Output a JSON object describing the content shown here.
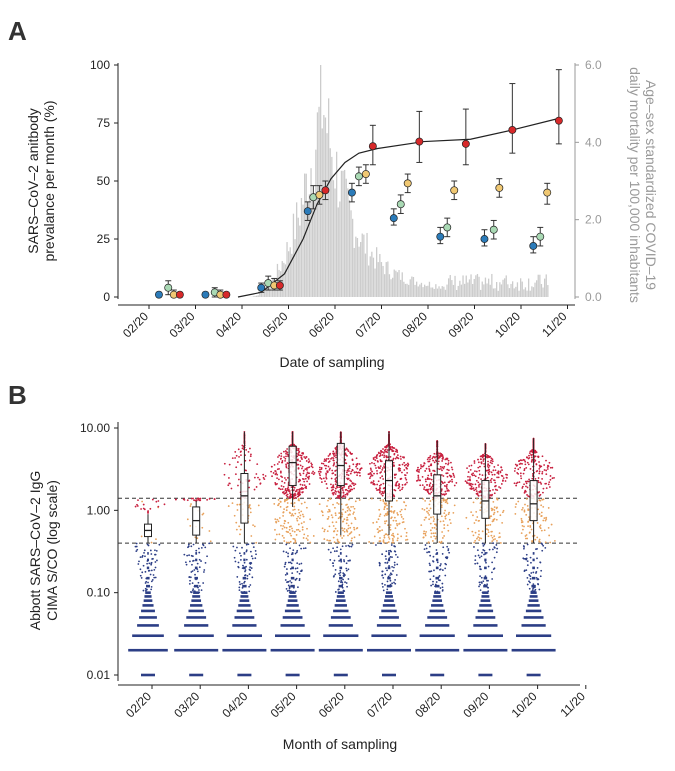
{
  "panels": {
    "A": {
      "letter": "A",
      "ylabel_line1": "SARS–CoV–2 anitbody",
      "ylabel_line2": "prevalance per month (%)",
      "y2label_line1": "Age–sex standardized COVID–19",
      "y2label_line2": "daily mortality per 100,000 inhabitants",
      "xlabel": "Date of sampling"
    },
    "B": {
      "letter": "B",
      "ylabel_line1": "Abbott SARS–CoV–2 IgG",
      "ylabel_line2": "CIMA S/CO (log scale)",
      "xlabel": "Month of sampling"
    }
  },
  "chart_data": [
    {
      "panel": "A",
      "type": "scatter",
      "title": "",
      "xlabel": "Date of sampling",
      "ylabel": "SARS–CoV–2 anitbody prevalance per month (%)",
      "y2label": "Age–sex standardized COVID–19 daily mortality per 100,000 inhabitants",
      "x_ticks": [
        "02/20",
        "03/20",
        "04/20",
        "05/20",
        "06/20",
        "07/20",
        "08/20",
        "09/20",
        "10/20",
        "11/20"
      ],
      "y_ticks": [
        "0",
        "25",
        "50",
        "75",
        "100"
      ],
      "y2_ticks": [
        "0.0",
        "2.0",
        "4.0",
        "6.0"
      ],
      "ylim": [
        0,
        100
      ],
      "y2lim": [
        0,
        6
      ],
      "colors": {
        "blue": "#2b7bb9",
        "green": "#a9d9b4",
        "yellow": "#f0c873",
        "red": "#d7292a",
        "mortality_bars": "#cccccc",
        "curve": "#222222"
      },
      "series": [
        {
          "name": "blue",
          "points": [
            [
              0.3,
              1,
              0,
              2
            ],
            [
              1.3,
              1,
              0,
              2
            ],
            [
              2.5,
              4,
              2,
              6
            ],
            [
              3.5,
              37,
              33,
              41
            ],
            [
              4.45,
              45,
              41,
              49
            ],
            [
              5.35,
              34,
              31,
              38
            ],
            [
              6.35,
              26,
              23,
              30
            ],
            [
              7.3,
              25,
              22,
              29
            ],
            [
              8.35,
              22,
              19,
              26
            ]
          ]
        },
        {
          "name": "green",
          "points": [
            [
              0.5,
              4,
              1,
              7
            ],
            [
              1.5,
              2,
              0,
              4
            ],
            [
              2.65,
              6,
              3,
              9
            ],
            [
              3.62,
              43,
              38,
              48
            ],
            [
              4.6,
              52,
              48,
              56
            ],
            [
              5.5,
              40,
              36,
              44
            ],
            [
              6.5,
              30,
              26,
              34
            ],
            [
              7.5,
              29,
              25,
              33
            ],
            [
              8.5,
              26,
              22,
              30
            ]
          ]
        },
        {
          "name": "yellow",
          "points": [
            [
              0.62,
              1,
              0,
              3
            ],
            [
              1.62,
              1,
              0,
              3
            ],
            [
              2.78,
              5,
              3,
              8
            ],
            [
              3.75,
              44,
              40,
              48
            ],
            [
              4.75,
              53,
              49,
              57
            ],
            [
              5.65,
              49,
              45,
              53
            ],
            [
              6.65,
              46,
              42,
              50
            ],
            [
              7.62,
              47,
              43,
              51
            ],
            [
              8.65,
              45,
              40,
              49
            ]
          ]
        },
        {
          "name": "red",
          "points": [
            [
              0.75,
              1,
              0,
              2
            ],
            [
              1.75,
              1,
              0,
              2
            ],
            [
              2.9,
              5,
              3,
              7
            ],
            [
              3.88,
              46,
              42,
              50
            ],
            [
              4.9,
              65,
              57,
              74
            ],
            [
              5.9,
              67,
              58,
              80
            ],
            [
              6.9,
              66,
              57,
              81
            ],
            [
              7.9,
              72,
              62,
              92
            ],
            [
              8.9,
              76,
              66,
              98
            ]
          ]
        }
      ],
      "trend_curve": [
        [
          2.0,
          0
        ],
        [
          2.5,
          2
        ],
        [
          3.0,
          10
        ],
        [
          3.4,
          25
        ],
        [
          3.7,
          40
        ],
        [
          4.0,
          51
        ],
        [
          4.3,
          58
        ],
        [
          4.6,
          62
        ],
        [
          5.0,
          64
        ],
        [
          6.0,
          67
        ],
        [
          7.0,
          68
        ],
        [
          7.9,
          72
        ],
        [
          8.9,
          77
        ]
      ],
      "mortality_peak_month": 3.8,
      "mortality_peak_value": 6.0
    },
    {
      "panel": "B",
      "type": "scatter",
      "title": "",
      "xlabel": "Month of sampling",
      "ylabel": "Abbott SARS–CoV–2 IgG CIMA S/CO (log scale)",
      "scale": "log",
      "x_ticks": [
        "02/20",
        "03/20",
        "04/20",
        "05/20",
        "06/20",
        "07/20",
        "08/20",
        "09/20",
        "10/20",
        "11/20"
      ],
      "y_ticks": [
        "0.01",
        "0.10",
        "1.00",
        "10.00"
      ],
      "ylim": [
        0.008,
        10
      ],
      "thresholds": [
        1.4,
        0.4
      ],
      "colors": {
        "high": "#c8203f",
        "mid": "#e8a15b",
        "low": "#2c3e86",
        "box": "#222222"
      },
      "months": [
        {
          "label": "02/20",
          "box": [
            0.48,
            0.57,
            0.68
          ],
          "whisker": [
            0.4,
            0.9
          ],
          "high": 0.05,
          "mid": 0.02
        },
        {
          "label": "03/20",
          "box": [
            0.5,
            0.75,
            1.1
          ],
          "whisker": [
            0.4,
            1.3
          ],
          "high": 0.08,
          "mid": 0.04
        },
        {
          "label": "04/20",
          "box": [
            0.7,
            1.5,
            2.8
          ],
          "whisker": [
            0.4,
            9.0
          ],
          "high": 0.25,
          "mid": 0.1
        },
        {
          "label": "05/20",
          "box": [
            2.0,
            3.8,
            6.0
          ],
          "whisker": [
            1.1,
            9.0
          ],
          "high": 1.0,
          "mid": 0.35
        },
        {
          "label": "06/20",
          "box": [
            2.0,
            3.5,
            6.5
          ],
          "whisker": [
            0.5,
            9.0
          ],
          "high": 1.0,
          "mid": 0.35
        },
        {
          "label": "07/20",
          "box": [
            1.3,
            2.3,
            4.0
          ],
          "whisker": [
            0.5,
            9.0
          ],
          "high": 0.9,
          "mid": 0.35
        },
        {
          "label": "08/20",
          "box": [
            0.9,
            1.5,
            2.7
          ],
          "whisker": [
            0.4,
            7.0
          ],
          "high": 0.75,
          "mid": 0.3
        },
        {
          "label": "09/20",
          "box": [
            0.8,
            1.3,
            2.3
          ],
          "whisker": [
            0.4,
            6.5
          ],
          "high": 0.65,
          "mid": 0.28
        },
        {
          "label": "10/20",
          "box": [
            0.75,
            1.2,
            2.3
          ],
          "whisker": [
            0.4,
            7.5
          ],
          "high": 0.65,
          "mid": 0.28
        }
      ]
    }
  ]
}
